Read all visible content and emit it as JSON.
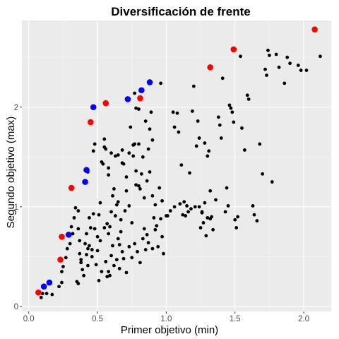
{
  "chart_data": {
    "type": "scatter",
    "title": "Diversificación de frente",
    "xlabel": "Primer objetivo (min)",
    "ylabel": "Segundo objetivo (max)",
    "xlim": [
      -0.05,
      2.2
    ],
    "ylim": [
      -0.05,
      2.87
    ],
    "x_ticks": [
      0.0,
      0.5,
      1.0,
      1.5,
      2.0
    ],
    "x_tick_labels": [
      "0.0",
      "0.5",
      "1.0",
      "1.5",
      "2.0"
    ],
    "y_ticks": [
      0,
      1,
      2
    ],
    "y_tick_labels": [
      "0",
      "1",
      "2"
    ],
    "grid": true,
    "legend": "none",
    "colors": {
      "panel": "#ebebeb",
      "grid_major": "#ffffff",
      "grid_minor": "#f5f5f5",
      "dominated": "#000000",
      "front_red": "#ff0000",
      "front_blue": "#0000ff"
    },
    "series": [
      {
        "color": "#000000",
        "size": "small",
        "points": [
          [
            0.09,
            0.09
          ],
          [
            0.1,
            0.13
          ],
          [
            0.13,
            0.13
          ],
          [
            0.17,
            0.12
          ],
          [
            0.22,
            0.2
          ],
          [
            0.24,
            0.24
          ],
          [
            0.24,
            0.35
          ],
          [
            0.25,
            0.4
          ],
          [
            0.27,
            0.49
          ],
          [
            0.28,
            0.58
          ],
          [
            0.3,
            0.63
          ],
          [
            0.32,
            0.73
          ],
          [
            0.31,
            0.8
          ],
          [
            0.33,
            0.89
          ],
          [
            0.34,
            0.99
          ],
          [
            0.36,
            0.96
          ],
          [
            0.36,
            0.78
          ],
          [
            0.37,
            0.66
          ],
          [
            0.37,
            0.53
          ],
          [
            0.38,
            0.44
          ],
          [
            0.39,
            0.37
          ],
          [
            0.4,
            0.31
          ],
          [
            0.42,
            0.52
          ],
          [
            0.42,
            0.73
          ],
          [
            0.43,
            0.58
          ],
          [
            0.44,
            0.89
          ],
          [
            0.45,
            0.79
          ],
          [
            0.46,
            0.57
          ],
          [
            0.47,
            0.93
          ],
          [
            0.5,
            0.56
          ],
          [
            0.51,
            0.92
          ],
          [
            0.52,
            1.04
          ],
          [
            0.53,
            1.45
          ],
          [
            0.54,
            1.43
          ],
          [
            0.55,
            1.68
          ],
          [
            0.56,
            1.58
          ],
          [
            0.58,
            1.39
          ],
          [
            0.58,
            0.73
          ],
          [
            0.58,
            0.35
          ],
          [
            0.59,
            0.31
          ],
          [
            0.6,
            0.95
          ],
          [
            0.61,
            1.11
          ],
          [
            0.63,
            1.51
          ],
          [
            0.64,
            1.02
          ],
          [
            0.65,
            1.05
          ],
          [
            0.66,
            0.62
          ],
          [
            0.67,
            0.75
          ],
          [
            0.68,
            1.57
          ],
          [
            0.68,
            1.44
          ],
          [
            0.7,
            0.96
          ],
          [
            0.71,
            1.3
          ],
          [
            0.73,
            1.01
          ],
          [
            0.75,
            0.84
          ],
          [
            0.76,
            1.51
          ],
          [
            0.77,
            1.63
          ],
          [
            0.78,
            1.36
          ],
          [
            0.8,
            1.21
          ],
          [
            0.81,
            1.18
          ],
          [
            0.83,
            1.5
          ],
          [
            0.84,
            0.78
          ],
          [
            0.86,
            0.72
          ],
          [
            0.87,
            1.58
          ],
          [
            0.88,
            1.78
          ],
          [
            0.89,
            1.95
          ],
          [
            0.9,
            1.67
          ],
          [
            0.91,
            0.89
          ],
          [
            0.93,
            0.81
          ],
          [
            0.95,
            1.19
          ],
          [
            0.96,
            0.88
          ],
          [
            0.97,
            1.06
          ],
          [
            0.98,
            0.53
          ],
          [
            1.0,
            0.91
          ],
          [
            1.01,
            0.91
          ],
          [
            1.03,
            0.96
          ],
          [
            1.05,
            1.95
          ],
          [
            1.06,
            1.8
          ],
          [
            1.08,
            1.94
          ],
          [
            1.09,
            1.75
          ],
          [
            1.11,
            1.42
          ],
          [
            1.13,
            1.05
          ],
          [
            1.14,
            0.91
          ],
          [
            1.15,
            1.01
          ],
          [
            1.17,
            1.34
          ],
          [
            1.19,
            1.96
          ],
          [
            1.2,
            2.21
          ],
          [
            1.22,
            1.61
          ],
          [
            1.23,
            1.86
          ],
          [
            1.24,
            1.69
          ],
          [
            1.25,
            0.79
          ],
          [
            1.26,
            0.95
          ],
          [
            1.27,
            0.84
          ],
          [
            1.28,
            1.04
          ],
          [
            1.28,
            1.64
          ],
          [
            1.29,
            0.71
          ],
          [
            1.3,
            1.51
          ],
          [
            1.31,
            1.56
          ],
          [
            1.32,
            1.16
          ],
          [
            1.33,
            0.9
          ],
          [
            1.34,
            0.77
          ],
          [
            1.36,
            1.07
          ],
          [
            1.38,
            1.9
          ],
          [
            1.39,
            1.82
          ],
          [
            1.4,
            1.69
          ],
          [
            1.41,
            2.29
          ],
          [
            1.43,
            0.95
          ],
          [
            1.44,
            1.19
          ],
          [
            1.45,
            1.01
          ],
          [
            1.46,
            2.02
          ],
          [
            1.47,
            1.99
          ],
          [
            1.48,
            1.95
          ],
          [
            1.49,
            1.85
          ],
          [
            1.5,
            0.87
          ],
          [
            1.51,
            0.79
          ],
          [
            1.52,
            0.9
          ],
          [
            1.54,
            2.51
          ],
          [
            1.55,
            1.79
          ],
          [
            1.57,
            1.57
          ],
          [
            1.59,
            2.12
          ],
          [
            1.6,
            2.08
          ],
          [
            1.63,
            1.01
          ],
          [
            1.64,
            0.92
          ],
          [
            1.66,
            0.86
          ],
          [
            1.68,
            1.63
          ],
          [
            1.7,
            1.33
          ],
          [
            1.72,
            2.38
          ],
          [
            1.73,
            2.32
          ],
          [
            1.74,
            2.57
          ],
          [
            1.75,
            2.52
          ],
          [
            1.77,
            1.25
          ],
          [
            1.8,
            2.53
          ],
          [
            1.82,
            2.4
          ],
          [
            1.86,
            2.24
          ],
          [
            1.88,
            2.5
          ],
          [
            1.9,
            2.44
          ],
          [
            1.96,
            2.42
          ],
          [
            1.98,
            2.37
          ],
          [
            2.02,
            2.37
          ],
          [
            2.12,
            2.51
          ],
          [
            0.43,
            1.35
          ],
          [
            0.47,
            1.56
          ],
          [
            0.48,
            1.63
          ],
          [
            0.49,
            0.42
          ],
          [
            0.51,
            0.26
          ],
          [
            0.53,
            0.35
          ],
          [
            0.56,
            0.45
          ],
          [
            0.57,
            0.3
          ],
          [
            0.6,
            0.51
          ],
          [
            0.62,
            0.41
          ],
          [
            0.64,
            0.47
          ],
          [
            0.66,
            0.38
          ],
          [
            0.68,
            0.55
          ],
          [
            0.69,
            0.48
          ],
          [
            0.71,
            0.34
          ],
          [
            0.73,
            0.6
          ],
          [
            0.75,
            0.49
          ],
          [
            0.77,
            0.63
          ],
          [
            0.79,
            0.55
          ],
          [
            0.81,
            0.44
          ],
          [
            0.83,
            0.68
          ],
          [
            0.85,
            0.57
          ],
          [
            0.87,
            0.64
          ],
          [
            0.9,
            0.58
          ],
          [
            0.92,
            0.77
          ],
          [
            0.94,
            0.6
          ],
          [
            0.97,
            0.7
          ],
          [
            0.35,
            0.25
          ],
          [
            0.36,
            0.23
          ],
          [
            0.38,
            0.47
          ],
          [
            0.41,
            0.63
          ],
          [
            0.43,
            0.41
          ],
          [
            0.44,
            0.61
          ],
          [
            0.46,
            0.5
          ],
          [
            0.48,
            0.78
          ],
          [
            0.5,
            0.7
          ],
          [
            0.52,
            0.66
          ],
          [
            0.55,
            0.79
          ],
          [
            0.57,
            0.83
          ],
          [
            0.59,
            0.8
          ],
          [
            0.61,
            0.61
          ],
          [
            0.63,
            0.91
          ],
          [
            0.65,
            0.68
          ],
          [
            0.67,
            0.87
          ],
          [
            0.69,
            1.43
          ],
          [
            0.71,
            1.16
          ],
          [
            0.73,
            1.54
          ],
          [
            0.74,
            1.8
          ],
          [
            0.76,
            1.62
          ],
          [
            0.78,
            1.22
          ],
          [
            0.8,
            1.63
          ],
          [
            0.82,
            1.33
          ],
          [
            0.84,
            1.09
          ],
          [
            0.86,
            1.26
          ],
          [
            0.88,
            1.35
          ],
          [
            0.9,
            1.11
          ],
          [
            0.92,
            1.02
          ],
          [
            1.06,
            1.0
          ],
          [
            1.1,
            1.03
          ],
          [
            1.12,
            0.92
          ],
          [
            1.16,
            0.95
          ],
          [
            1.18,
            0.98
          ],
          [
            1.21,
            1.0
          ],
          [
            1.24,
            1.0
          ],
          [
            1.26,
            0.94
          ],
          [
            1.3,
            0.89
          ],
          [
            1.32,
            0.88
          ],
          [
            0.62,
            1.18
          ],
          [
            0.58,
            1.32
          ],
          [
            0.77,
            2.14
          ],
          [
            0.78,
            1.99
          ],
          [
            0.8,
            1.98
          ],
          [
            0.96,
            2.24
          ],
          [
            0.85,
            1.86
          ],
          [
            0.55,
            1.6
          ],
          [
            0.6,
            1.54
          ],
          [
            0.65,
            1.52
          ]
        ]
      },
      {
        "color": "#ff0000",
        "size": "large",
        "points": [
          [
            0.07,
            0.14
          ],
          [
            0.23,
            0.47
          ],
          [
            0.24,
            0.7
          ],
          [
            0.31,
            1.19
          ],
          [
            0.45,
            1.85
          ],
          [
            0.56,
            2.04
          ],
          [
            0.81,
            2.09
          ],
          [
            1.32,
            2.4
          ],
          [
            1.49,
            2.58
          ],
          [
            2.08,
            2.78
          ]
        ]
      },
      {
        "color": "#0000ff",
        "size": "large",
        "points": [
          [
            0.11,
            0.2
          ],
          [
            0.15,
            0.24
          ],
          [
            0.29,
            0.72
          ],
          [
            0.41,
            1.25
          ],
          [
            0.42,
            1.37
          ],
          [
            0.47,
            2.0
          ],
          [
            0.72,
            2.08
          ],
          [
            0.82,
            2.17
          ],
          [
            0.88,
            2.25
          ]
        ]
      }
    ]
  }
}
